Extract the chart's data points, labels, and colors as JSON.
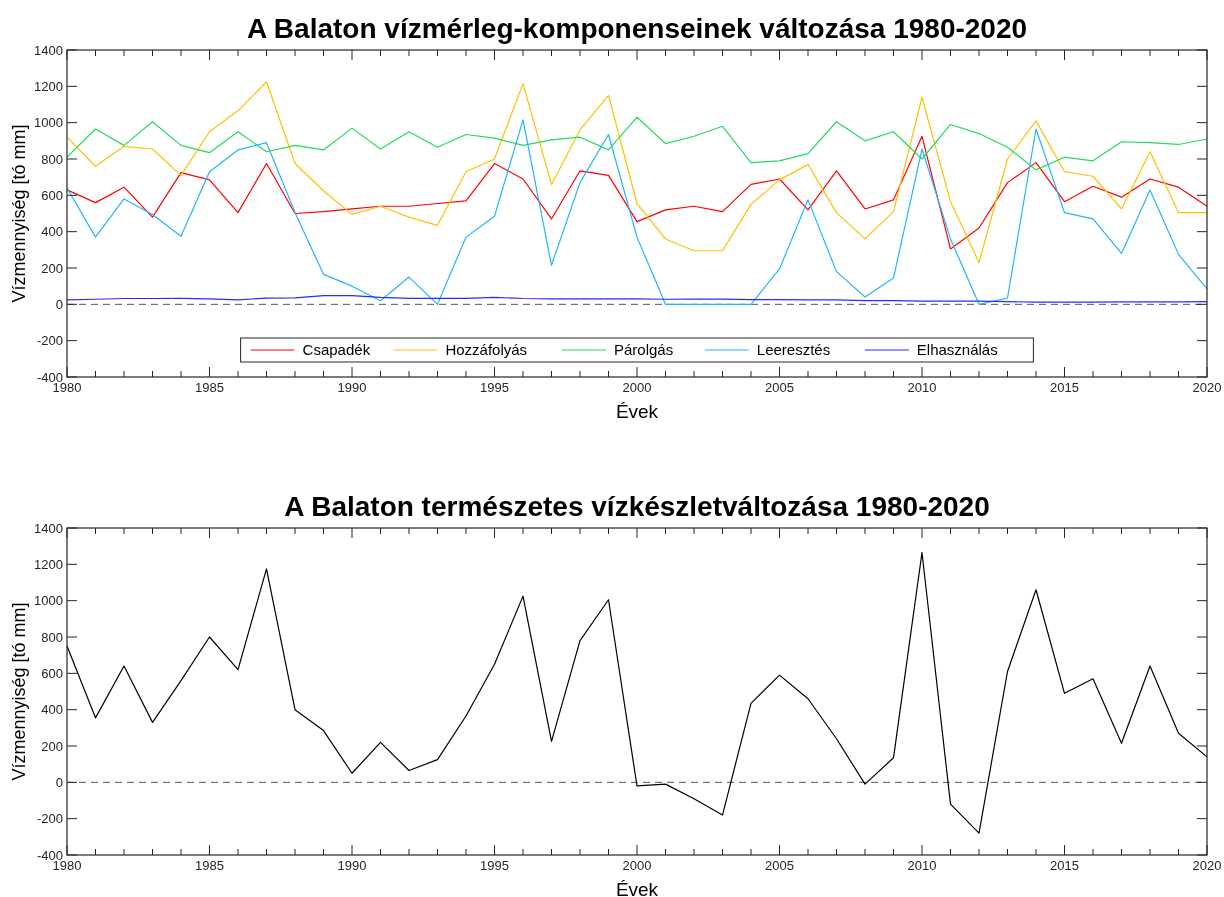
{
  "chart_data": [
    {
      "type": "line",
      "title": "A Balaton vízmérleg-komponenseinek változása 1980-2020",
      "xlabel": "Évek",
      "ylabel": "Vízmennyiség [tó mm]",
      "x": [
        1980,
        1981,
        1982,
        1983,
        1984,
        1985,
        1986,
        1987,
        1988,
        1989,
        1990,
        1991,
        1992,
        1993,
        1994,
        1995,
        1996,
        1997,
        1998,
        1999,
        2000,
        2001,
        2002,
        2003,
        2004,
        2005,
        2006,
        2007,
        2008,
        2009,
        2010,
        2011,
        2012,
        2013,
        2014,
        2015,
        2016,
        2017,
        2018,
        2019,
        2020
      ],
      "series": [
        {
          "name": "Csapadék",
          "color": "#ff0000",
          "values": [
            630,
            560,
            645,
            480,
            725,
            685,
            505,
            775,
            500,
            510,
            525,
            540,
            540,
            555,
            570,
            775,
            690,
            470,
            735,
            710,
            455,
            520,
            540,
            510,
            660,
            690,
            520,
            735,
            525,
            575,
            925,
            305,
            420,
            670,
            780,
            565,
            650,
            590,
            690,
            645,
            540
          ]
        },
        {
          "name": "Hozzáfolyás",
          "color": "#ffc000",
          "values": [
            920,
            760,
            870,
            855,
            710,
            950,
            1065,
            1225,
            775,
            625,
            495,
            540,
            480,
            435,
            730,
            800,
            1215,
            660,
            960,
            1150,
            555,
            360,
            295,
            295,
            550,
            685,
            770,
            505,
            360,
            510,
            1140,
            565,
            230,
            800,
            1010,
            730,
            705,
            525,
            840,
            505,
            505
          ]
        },
        {
          "name": "Párolgás",
          "color": "#22dd55",
          "values": [
            810,
            965,
            875,
            1005,
            875,
            835,
            950,
            840,
            875,
            850,
            970,
            855,
            950,
            865,
            935,
            915,
            875,
            905,
            920,
            850,
            1030,
            885,
            925,
            980,
            780,
            790,
            830,
            1005,
            900,
            950,
            800,
            990,
            940,
            865,
            740,
            810,
            790,
            895,
            890,
            880,
            910
          ]
        },
        {
          "name": "Leeresztés",
          "color": "#22b4ff",
          "values": [
            640,
            370,
            580,
            495,
            375,
            730,
            850,
            890,
            505,
            165,
            100,
            20,
            150,
            0,
            370,
            485,
            1015,
            215,
            670,
            935,
            370,
            0,
            0,
            0,
            0,
            195,
            575,
            180,
            40,
            145,
            855,
            360,
            0,
            35,
            965,
            505,
            470,
            280,
            630,
            275,
            85
          ]
        },
        {
          "name": "Elhasználás",
          "color": "#2a2aff",
          "values": [
            25,
            28,
            32,
            32,
            33,
            30,
            25,
            34,
            36,
            48,
            48,
            38,
            33,
            33,
            33,
            38,
            32,
            30,
            30,
            30,
            30,
            28,
            29,
            29,
            26,
            26,
            24,
            24,
            20,
            20,
            18,
            18,
            18,
            15,
            12,
            12,
            12,
            14,
            14,
            14,
            15
          ]
        }
      ],
      "xlim": [
        1980,
        2020
      ],
      "xticks": [
        1980,
        {
          "value": 1981,
          "label": null
        },
        {
          "value": 1982,
          "label": null
        },
        {
          "value": 1983,
          "label": null
        },
        {
          "value": 1984,
          "label": null
        },
        1985,
        {
          "value": 1986,
          "label": null
        },
        {
          "value": 1987,
          "label": null
        },
        {
          "value": 1988,
          "label": null
        },
        {
          "value": 1989,
          "label": null
        },
        1990,
        {
          "value": 1991,
          "label": null
        },
        {
          "value": 1992,
          "label": null
        },
        {
          "value": 1993,
          "label": null
        },
        {
          "value": 1994,
          "label": null
        },
        1995,
        {
          "value": 1996,
          "label": null
        },
        {
          "value": 1997,
          "label": null
        },
        {
          "value": 1998,
          "label": null
        },
        {
          "value": 1999,
          "label": null
        },
        2000,
        {
          "value": 2001,
          "label": null
        },
        {
          "value": 2002,
          "label": null
        },
        {
          "value": 2003,
          "label": null
        },
        {
          "value": 2004,
          "label": null
        },
        2005,
        {
          "value": 2006,
          "label": null
        },
        {
          "value": 2007,
          "label": null
        },
        {
          "value": 2008,
          "label": null
        },
        {
          "value": 2009,
          "label": null
        },
        2010,
        {
          "value": 2011,
          "label": null
        },
        {
          "value": 2012,
          "label": null
        },
        {
          "value": 2013,
          "label": null
        },
        {
          "value": 2014,
          "label": null
        },
        2015,
        {
          "value": 2016,
          "label": null
        },
        {
          "value": 2017,
          "label": null
        },
        {
          "value": 2018,
          "label": null
        },
        {
          "value": 2019,
          "label": null
        },
        2020
      ],
      "ylim": [
        -400,
        1400
      ],
      "yticks": [
        -400,
        -200,
        0,
        200,
        400,
        600,
        800,
        1000,
        1200,
        1400
      ],
      "ref_lines": [
        {
          "axis": "y",
          "value": 0,
          "color": "#555555",
          "line_style": "dashed"
        }
      ],
      "legend": "bottom",
      "grid": false,
      "marker": "none",
      "line_style": "solid"
    },
    {
      "type": "line",
      "title": "A Balaton természetes vízkészletváltozása 1980-2020",
      "xlabel": "Évek",
      "ylabel": "Vízmennyiség [tó mm]",
      "x": [
        1980,
        1981,
        1982,
        1983,
        1984,
        1985,
        1986,
        1987,
        1988,
        1989,
        1990,
        1991,
        1992,
        1993,
        1994,
        1995,
        1996,
        1997,
        1998,
        1999,
        2000,
        2001,
        2002,
        2003,
        2004,
        2005,
        2006,
        2007,
        2008,
        2009,
        2010,
        2011,
        2012,
        2013,
        2014,
        2015,
        2016,
        2017,
        2018,
        2019,
        2020
      ],
      "series": [
        {
          "color": "#000000",
          "values": [
            750,
            355,
            640,
            330,
            560,
            800,
            620,
            1175,
            400,
            285,
            50,
            220,
            65,
            125,
            365,
            650,
            1025,
            225,
            780,
            1005,
            -20,
            -10,
            -90,
            -180,
            435,
            590,
            460,
            240,
            -10,
            135,
            1265,
            -120,
            -280,
            610,
            1060,
            490,
            570,
            215,
            640,
            270,
            140
          ]
        }
      ],
      "xlim": [
        1980,
        2020
      ],
      "xticks": [
        1980,
        {
          "value": 1981,
          "label": null
        },
        {
          "value": 1982,
          "label": null
        },
        {
          "value": 1983,
          "label": null
        },
        {
          "value": 1984,
          "label": null
        },
        1985,
        {
          "value": 1986,
          "label": null
        },
        {
          "value": 1987,
          "label": null
        },
        {
          "value": 1988,
          "label": null
        },
        {
          "value": 1989,
          "label": null
        },
        1990,
        {
          "value": 1991,
          "label": null
        },
        {
          "value": 1992,
          "label": null
        },
        {
          "value": 1993,
          "label": null
        },
        {
          "value": 1994,
          "label": null
        },
        1995,
        {
          "value": 1996,
          "label": null
        },
        {
          "value": 1997,
          "label": null
        },
        {
          "value": 1998,
          "label": null
        },
        {
          "value": 1999,
          "label": null
        },
        2000,
        {
          "value": 2001,
          "label": null
        },
        {
          "value": 2002,
          "label": null
        },
        {
          "value": 2003,
          "label": null
        },
        {
          "value": 2004,
          "label": null
        },
        2005,
        {
          "value": 2006,
          "label": null
        },
        {
          "value": 2007,
          "label": null
        },
        {
          "value": 2008,
          "label": null
        },
        {
          "value": 2009,
          "label": null
        },
        2010,
        {
          "value": 2011,
          "label": null
        },
        {
          "value": 2012,
          "label": null
        },
        {
          "value": 2013,
          "label": null
        },
        {
          "value": 2014,
          "label": null
        },
        2015,
        {
          "value": 2016,
          "label": null
        },
        {
          "value": 2017,
          "label": null
        },
        {
          "value": 2018,
          "label": null
        },
        {
          "value": 2019,
          "label": null
        },
        2020
      ],
      "ylim": [
        -400,
        1400
      ],
      "yticks": [
        -400,
        -200,
        0,
        200,
        400,
        600,
        800,
        1000,
        1200,
        1400
      ],
      "ref_lines": [
        {
          "axis": "y",
          "value": 0,
          "color": "#555555",
          "line_style": "dashed"
        }
      ],
      "grid": false,
      "marker": "none",
      "line_style": "solid"
    }
  ]
}
